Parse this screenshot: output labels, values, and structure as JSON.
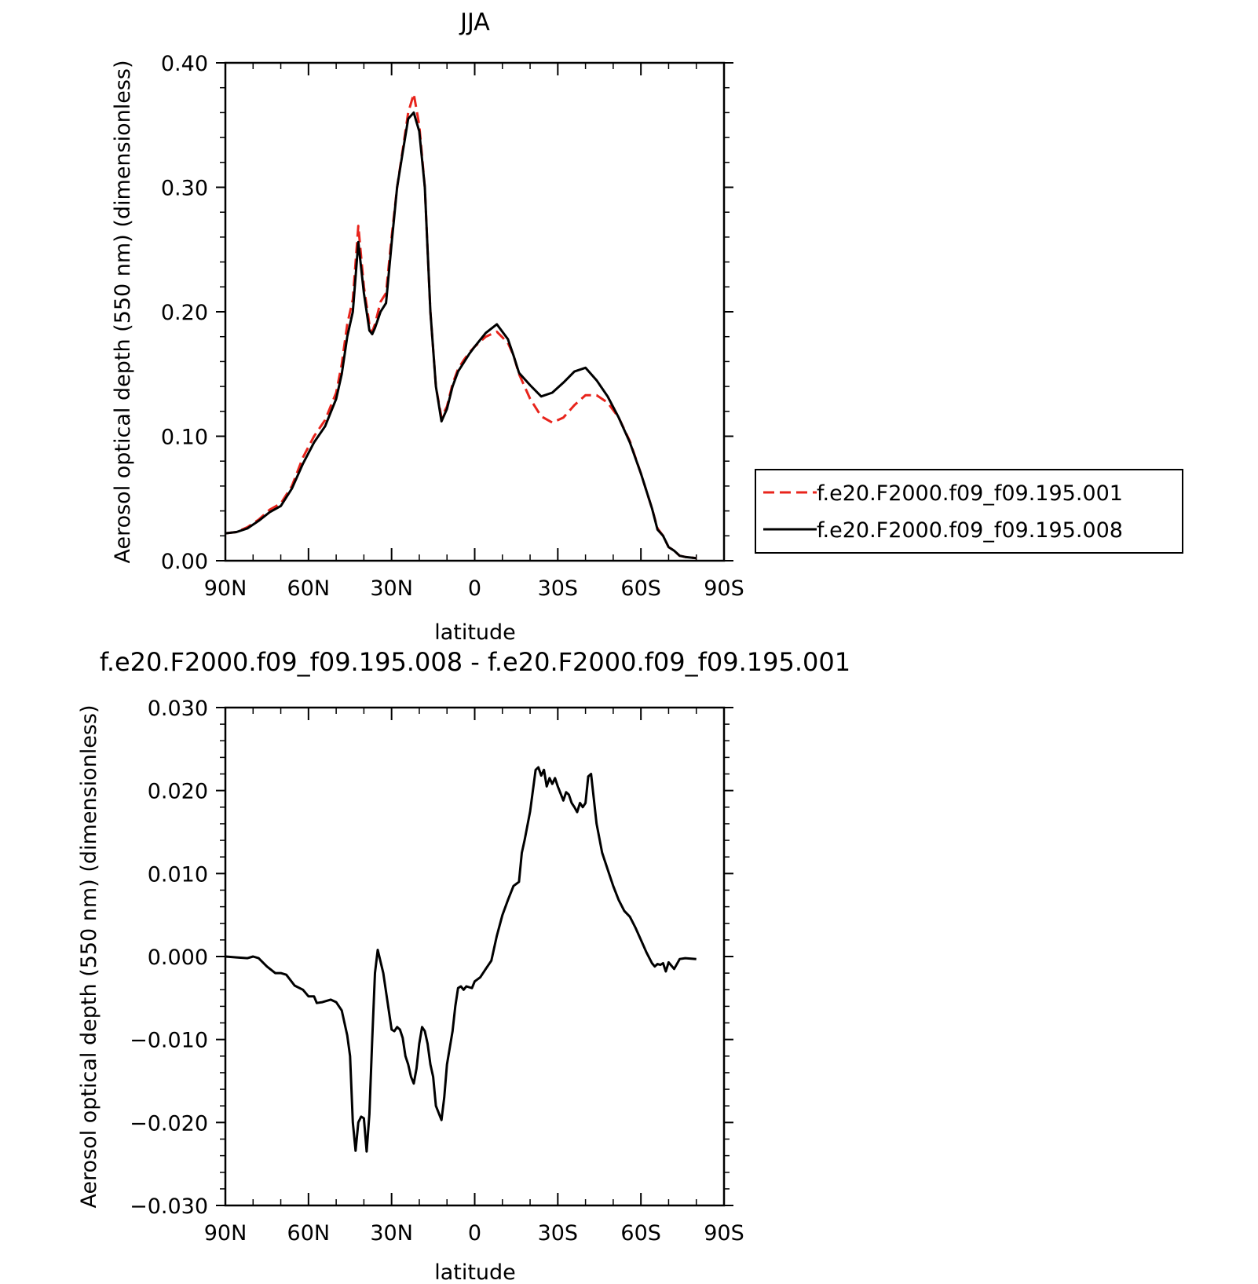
{
  "chart_data": [
    {
      "type": "line",
      "title": "JJA",
      "xlabel": "latitude",
      "ylabel": "Aerosol optical depth (550 nm) (dimensionless)",
      "xlim": [
        90,
        -90
      ],
      "ylim": [
        0,
        0.4
      ],
      "xticks": [
        90,
        60,
        30,
        0,
        -30,
        -60,
        -90
      ],
      "xtick_labels": [
        "90N",
        "60N",
        "30N",
        "0",
        "30S",
        "60S",
        "90S"
      ],
      "yticks": [
        0,
        0.1,
        0.2,
        0.3,
        0.4
      ],
      "ytick_labels": [
        "0.00",
        "0.10",
        "0.20",
        "0.30",
        "0.40"
      ],
      "grid": false,
      "legend": "right",
      "series": [
        {
          "name": "f.e20.F2000.f09_f09.195.001",
          "color": "#e8241c",
          "dash": "dashed",
          "x": [
            90,
            86,
            82,
            78,
            74,
            70,
            66,
            62,
            58,
            54,
            50,
            48,
            46,
            44,
            42,
            40,
            38,
            37,
            36,
            34,
            32,
            30,
            28,
            26,
            24,
            22,
            20,
            18,
            17,
            16,
            14,
            12,
            10,
            8,
            6,
            4,
            2,
            0,
            -4,
            -8,
            -12,
            -14,
            -16,
            -20,
            -24,
            -28,
            -32,
            -36,
            -40,
            -44,
            -48,
            -52,
            -56,
            -60,
            -64,
            -66,
            -68,
            -70,
            -72,
            -74,
            -76,
            -80
          ],
          "y": [
            0.022,
            0.023,
            0.027,
            0.033,
            0.041,
            0.046,
            0.06,
            0.083,
            0.1,
            0.113,
            0.135,
            0.158,
            0.19,
            0.21,
            0.269,
            0.22,
            0.19,
            0.184,
            0.19,
            0.208,
            0.215,
            0.26,
            0.3,
            0.33,
            0.36,
            0.375,
            0.35,
            0.3,
            0.25,
            0.2,
            0.14,
            0.115,
            0.124,
            0.142,
            0.154,
            0.161,
            0.167,
            0.172,
            0.18,
            0.184,
            0.175,
            0.165,
            0.15,
            0.13,
            0.116,
            0.111,
            0.115,
            0.125,
            0.133,
            0.133,
            0.127,
            0.115,
            0.096,
            0.07,
            0.042,
            0.026,
            0.02,
            0.011,
            0.008,
            0.004,
            0.003,
            0.002
          ]
        },
        {
          "name": "f.e20.F2000.f09_f09.195.008",
          "color": "#000000",
          "dash": "solid",
          "x": [
            90,
            86,
            82,
            78,
            74,
            70,
            66,
            62,
            58,
            54,
            50,
            48,
            46,
            44,
            42,
            40,
            38,
            37,
            36,
            34,
            32,
            30,
            28,
            26,
            24,
            22,
            20,
            18,
            17,
            16,
            14,
            12,
            10,
            8,
            6,
            4,
            2,
            0,
            -4,
            -8,
            -12,
            -14,
            -16,
            -20,
            -24,
            -28,
            -32,
            -36,
            -40,
            -44,
            -48,
            -52,
            -56,
            -60,
            -64,
            -66,
            -68,
            -70,
            -72,
            -74,
            -76,
            -80
          ],
          "y": [
            0.022,
            0.023,
            0.026,
            0.032,
            0.039,
            0.044,
            0.058,
            0.078,
            0.095,
            0.108,
            0.13,
            0.15,
            0.18,
            0.2,
            0.256,
            0.215,
            0.185,
            0.182,
            0.187,
            0.2,
            0.207,
            0.255,
            0.3,
            0.328,
            0.355,
            0.36,
            0.345,
            0.3,
            0.25,
            0.2,
            0.14,
            0.112,
            0.122,
            0.14,
            0.152,
            0.159,
            0.166,
            0.172,
            0.183,
            0.19,
            0.178,
            0.165,
            0.151,
            0.141,
            0.132,
            0.135,
            0.143,
            0.152,
            0.155,
            0.145,
            0.132,
            0.115,
            0.095,
            0.07,
            0.042,
            0.025,
            0.02,
            0.011,
            0.008,
            0.004,
            0.003,
            0.002
          ]
        }
      ]
    },
    {
      "type": "line",
      "title": "f.e20.F2000.f09_f09.195.008 - f.e20.F2000.f09_f09.195.001",
      "xlabel": "latitude",
      "ylabel": "Aerosol optical depth (550 nm) (dimensionless)",
      "xlim": [
        90,
        -90
      ],
      "ylim": [
        -0.03,
        0.03
      ],
      "xticks": [
        90,
        60,
        30,
        0,
        -30,
        -60,
        -90
      ],
      "xtick_labels": [
        "90N",
        "60N",
        "30N",
        "0",
        "30S",
        "60S",
        "90S"
      ],
      "yticks": [
        -0.03,
        -0.02,
        -0.01,
        0,
        0.01,
        0.02,
        0.03
      ],
      "ytick_labels": [
        "−0.030",
        "−0.020",
        "−0.010",
        "0.000",
        "0.010",
        "0.020",
        "0.030"
      ],
      "grid": false,
      "series": [
        {
          "color": "#000000",
          "dash": "solid",
          "x": [
            90,
            86,
            82,
            80,
            78,
            75,
            72,
            70,
            68,
            65,
            62,
            60,
            58,
            57,
            55,
            52,
            50,
            48,
            46,
            45,
            44,
            43,
            42,
            41,
            40,
            39,
            38,
            37,
            36,
            35,
            33,
            31,
            30,
            29,
            28,
            27,
            26,
            25,
            24,
            23,
            22,
            21,
            20,
            19,
            18,
            17,
            16,
            15,
            14,
            12,
            11,
            10,
            8,
            7,
            6,
            5,
            4,
            3,
            1,
            0,
            -2,
            -4,
            -6,
            -8,
            -10,
            -12,
            -14,
            -16,
            -17,
            -18,
            -20,
            -22,
            -23,
            -24,
            -25,
            -26,
            -27,
            -28,
            -29,
            -30,
            -32,
            -33,
            -34,
            -35,
            -36,
            -37,
            -38,
            -39,
            -40,
            -41,
            -42,
            -44,
            -46,
            -48,
            -50,
            -52,
            -54,
            -56,
            -58,
            -60,
            -62,
            -64,
            -65,
            -66,
            -67,
            -68,
            -69,
            -70,
            -72,
            -74,
            -76,
            -80
          ],
          "y": [
            0,
            -0.0001,
            -0.0002,
            0,
            -0.0002,
            -0.0012,
            -0.002,
            -0.002,
            -0.0022,
            -0.0035,
            -0.004,
            -0.0048,
            -0.0048,
            -0.0056,
            -0.0055,
            -0.0052,
            -0.0055,
            -0.0065,
            -0.0095,
            -0.012,
            -0.02,
            -0.0234,
            -0.02,
            -0.0193,
            -0.0195,
            -0.0235,
            -0.019,
            -0.01,
            -0.002,
            0.0008,
            -0.002,
            -0.0065,
            -0.0088,
            -0.009,
            -0.0085,
            -0.0088,
            -0.0098,
            -0.012,
            -0.013,
            -0.0145,
            -0.0153,
            -0.0135,
            -0.0105,
            -0.0085,
            -0.009,
            -0.0105,
            -0.013,
            -0.0145,
            -0.018,
            -0.0197,
            -0.017,
            -0.013,
            -0.009,
            -0.006,
            -0.0038,
            -0.0036,
            -0.004,
            -0.0036,
            -0.0038,
            -0.003,
            -0.0025,
            -0.0015,
            -0.0005,
            0.0025,
            0.005,
            0.0068,
            0.0085,
            0.009,
            0.0125,
            0.014,
            0.0175,
            0.0225,
            0.0228,
            0.0218,
            0.0225,
            0.0205,
            0.0215,
            0.0208,
            0.0215,
            0.0205,
            0.0188,
            0.0198,
            0.0195,
            0.0185,
            0.018,
            0.0174,
            0.0185,
            0.018,
            0.0185,
            0.0217,
            0.022,
            0.016,
            0.0125,
            0.0105,
            0.0085,
            0.0068,
            0.0055,
            0.0048,
            0.0035,
            0.002,
            0.0005,
            -0.0008,
            -0.0012,
            -0.0009,
            -0.001,
            -0.0008,
            -0.0018,
            -0.0007,
            -0.0015,
            -0.0003,
            -0.0002,
            -0.0003
          ]
        }
      ]
    }
  ]
}
